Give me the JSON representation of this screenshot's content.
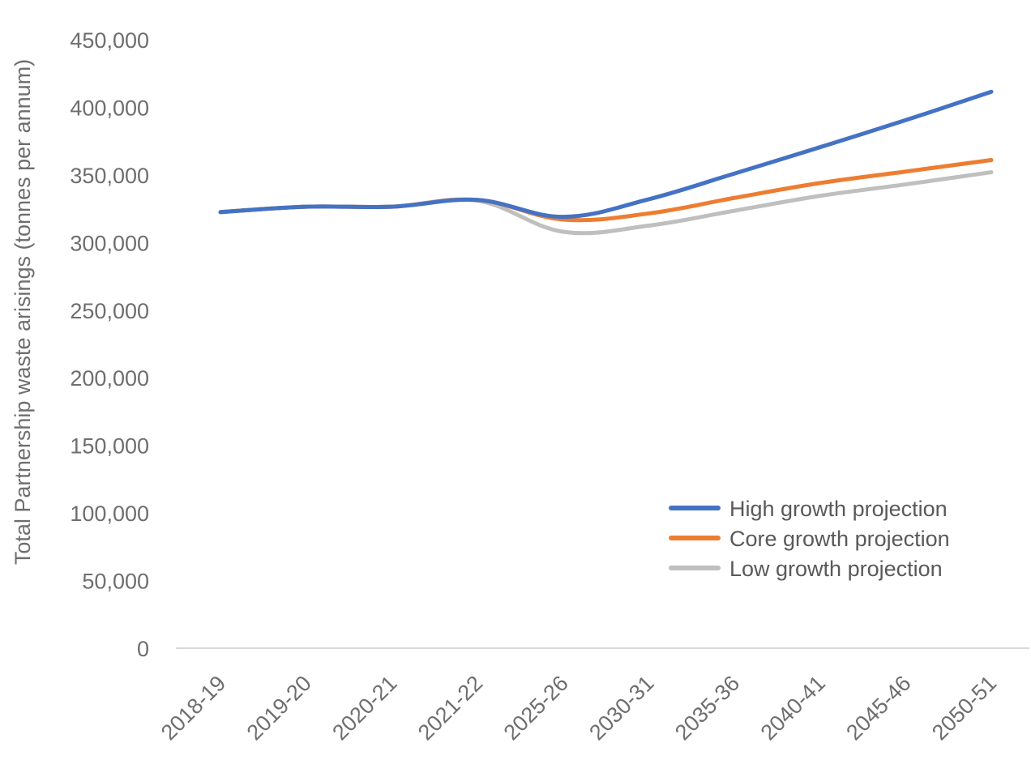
{
  "chart_data": {
    "type": "line",
    "title": "",
    "xlabel": "",
    "ylabel": "Total Partnership waste arisings (tonnes per annum)",
    "categories": [
      "2018-19",
      "2019-20",
      "2020-21",
      "2021-22",
      "2025-26",
      "2030-31",
      "2035-36",
      "2040-41",
      "2045-46",
      "2050-51"
    ],
    "ylim": [
      0,
      450000
    ],
    "yticks": [
      0,
      50000,
      100000,
      150000,
      200000,
      250000,
      300000,
      350000,
      400000,
      450000
    ],
    "ytick_labels": [
      "0",
      "50,000",
      "100,000",
      "150,000",
      "200,000",
      "250,000",
      "300,000",
      "350,000",
      "400,000",
      "450,000"
    ],
    "grid": false,
    "legend_position": "bottom-right",
    "series": [
      {
        "name": "High growth projection",
        "color": "#4472C4",
        "values": [
          322500,
          326500,
          326500,
          331500,
          319000,
          332000,
          351000,
          370500,
          390500,
          411500
        ]
      },
      {
        "name": "Core growth projection",
        "color": "#ED7D31",
        "values": [
          322500,
          326500,
          326500,
          331500,
          317000,
          321500,
          333000,
          344000,
          352500,
          361000
        ]
      },
      {
        "name": "Low growth projection",
        "color": "#BFBFBF",
        "values": [
          322500,
          326500,
          326500,
          331000,
          308000,
          312500,
          323500,
          334500,
          343000,
          352000
        ]
      }
    ]
  }
}
